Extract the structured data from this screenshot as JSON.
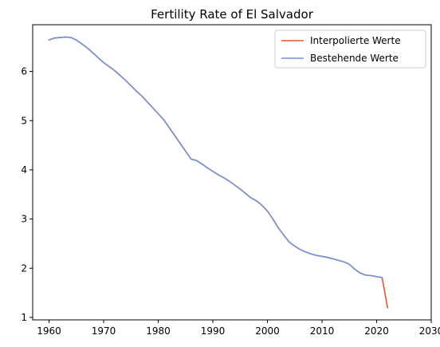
{
  "chart_data": {
    "type": "line",
    "title": "Fertility Rate of El Salvador",
    "xlabel": "",
    "ylabel": "",
    "xlim": [
      1957,
      2030
    ],
    "ylim": [
      0.95,
      6.95
    ],
    "xticks": [
      1960,
      1970,
      1980,
      1990,
      2000,
      2010,
      2020,
      2030
    ],
    "yticks": [
      1,
      2,
      3,
      4,
      5,
      6
    ],
    "grid": false,
    "legend_position": "top-right",
    "series": [
      {
        "name": "Interpolierte Werte",
        "color": "#e8542a",
        "x": [
          1960,
          1961,
          1962,
          1963,
          1964,
          1965,
          1966,
          1967,
          1968,
          1969,
          1970,
          1971,
          1972,
          1973,
          1974,
          1975,
          1976,
          1977,
          1978,
          1979,
          1980,
          1981,
          1982,
          1983,
          1984,
          1985,
          1986,
          1987,
          1988,
          1989,
          1990,
          1991,
          1992,
          1993,
          1994,
          1995,
          1996,
          1997,
          1998,
          1999,
          2000,
          2001,
          2002,
          2003,
          2004,
          2005,
          2006,
          2007,
          2008,
          2009,
          2010,
          2011,
          2012,
          2013,
          2014,
          2015,
          2016,
          2017,
          2018,
          2019,
          2020,
          2021,
          2022
        ],
        "y": [
          6.64,
          6.68,
          6.69,
          6.7,
          6.69,
          6.64,
          6.56,
          6.48,
          6.38,
          6.28,
          6.18,
          6.1,
          6.02,
          5.92,
          5.82,
          5.71,
          5.6,
          5.5,
          5.38,
          5.26,
          5.14,
          5.02,
          4.86,
          4.7,
          4.54,
          4.38,
          4.22,
          4.19,
          4.12,
          4.04,
          3.97,
          3.9,
          3.84,
          3.77,
          3.69,
          3.61,
          3.52,
          3.43,
          3.37,
          3.28,
          3.16,
          3.0,
          2.82,
          2.67,
          2.53,
          2.45,
          2.38,
          2.33,
          2.29,
          2.26,
          2.24,
          2.22,
          2.19,
          2.16,
          2.13,
          2.08,
          1.98,
          1.9,
          1.86,
          1.85,
          1.83,
          1.81,
          1.2
        ]
      },
      {
        "name": "Bestehende Werte",
        "color": "#6f94dc",
        "x": [
          1960,
          1961,
          1962,
          1963,
          1964,
          1965,
          1966,
          1967,
          1968,
          1969,
          1970,
          1971,
          1972,
          1973,
          1974,
          1975,
          1976,
          1977,
          1978,
          1979,
          1980,
          1981,
          1982,
          1983,
          1984,
          1985,
          1986,
          1987,
          1988,
          1989,
          1990,
          1991,
          1992,
          1993,
          1994,
          1995,
          1996,
          1997,
          1998,
          1999,
          2000,
          2001,
          2002,
          2003,
          2004,
          2005,
          2006,
          2007,
          2008,
          2009,
          2010,
          2011,
          2012,
          2013,
          2014,
          2015,
          2016,
          2017,
          2018,
          2019,
          2020,
          2021
        ],
        "y": [
          6.64,
          6.68,
          6.69,
          6.7,
          6.69,
          6.64,
          6.56,
          6.48,
          6.38,
          6.28,
          6.18,
          6.1,
          6.02,
          5.92,
          5.82,
          5.71,
          5.6,
          5.5,
          5.38,
          5.26,
          5.14,
          5.02,
          4.86,
          4.7,
          4.54,
          4.38,
          4.22,
          4.19,
          4.12,
          4.04,
          3.97,
          3.9,
          3.84,
          3.77,
          3.69,
          3.61,
          3.52,
          3.43,
          3.37,
          3.28,
          3.16,
          3.0,
          2.82,
          2.67,
          2.53,
          2.45,
          2.38,
          2.33,
          2.29,
          2.26,
          2.24,
          2.22,
          2.19,
          2.16,
          2.13,
          2.08,
          1.98,
          1.9,
          1.86,
          1.85,
          1.83,
          1.81
        ]
      }
    ]
  }
}
